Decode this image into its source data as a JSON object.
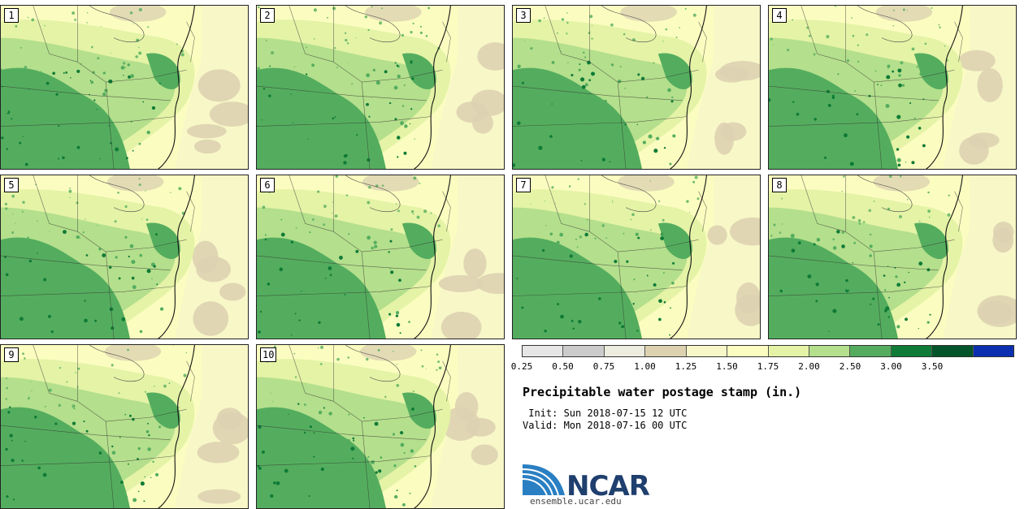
{
  "panels": [
    {
      "label": "1"
    },
    {
      "label": "2"
    },
    {
      "label": "3"
    },
    {
      "label": "4"
    },
    {
      "label": "5"
    },
    {
      "label": "6"
    },
    {
      "label": "7"
    },
    {
      "label": "8"
    },
    {
      "label": "9"
    },
    {
      "label": "10"
    }
  ],
  "colorbar": {
    "colors": [
      "#e6e6e6",
      "#cbcbcb",
      "#ececdf",
      "#ddd2b0",
      "#f8f7c8",
      "#fbfdc0",
      "#e4f3a6",
      "#b4df8c",
      "#54ad5e",
      "#0f7b37",
      "#02542a",
      "#0b2fb0"
    ],
    "tick_labels": [
      "0.25",
      "0.50",
      "0.75",
      "1.00",
      "1.25",
      "1.50",
      "1.75",
      "2.00",
      "2.50",
      "3.00",
      "3.50"
    ]
  },
  "title": "Precipitable water postage stamp (in.)",
  "init_line": " Init: Sun 2018-07-15 12 UTC",
  "valid_line": "Valid: Mon 2018-07-16 00 UTC",
  "logo": {
    "text": "NCAR",
    "url": "ensemble.ucar.edu"
  }
}
